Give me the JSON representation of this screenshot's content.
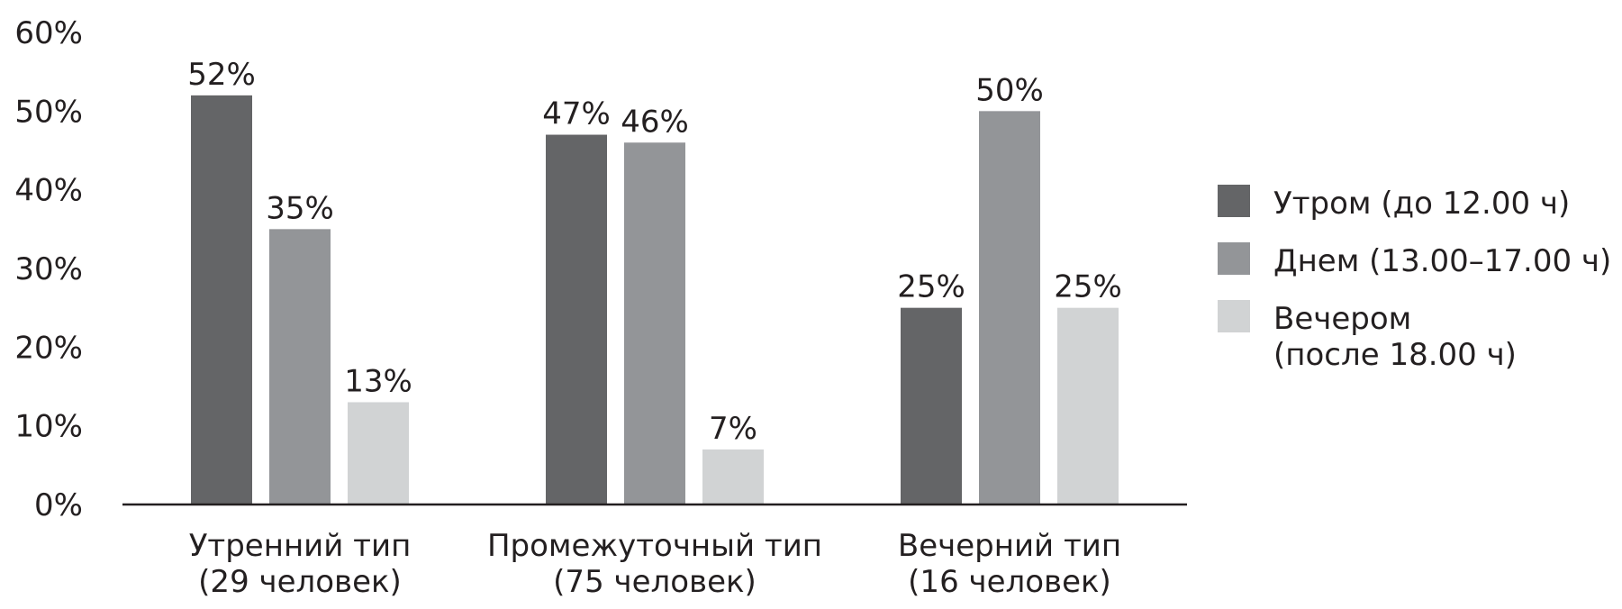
{
  "chart_data": {
    "type": "bar",
    "title": "",
    "xlabel": "",
    "ylabel": "",
    "ylim": [
      0,
      60
    ],
    "yticks": [
      "0%",
      "10%",
      "20%",
      "30%",
      "40%",
      "50%",
      "60%"
    ],
    "ytick_values": [
      0,
      10,
      20,
      30,
      40,
      50,
      60
    ],
    "grid": false,
    "legend_position": "right",
    "categories": [
      [
        "Утренний тип",
        "(29 человек)"
      ],
      [
        "Промежуточный тип",
        "(75 человек)"
      ],
      [
        "Вечерний тип",
        "(16 человек)"
      ]
    ],
    "series": [
      {
        "name": [
          "Утром (до 12.00 ч)"
        ],
        "color": "#646567",
        "values": [
          52,
          47,
          25
        ],
        "labels": [
          "52%",
          "47%",
          "25%"
        ]
      },
      {
        "name": [
          "Днем (13.00–17.00 ч)"
        ],
        "color": "#939598",
        "values": [
          35,
          46,
          50
        ],
        "labels": [
          "35%",
          "46%",
          "50%"
        ]
      },
      {
        "name": [
          "Вечером",
          "(после 18.00 ч)"
        ],
        "color": "#d1d3d4",
        "values": [
          13,
          7,
          25
        ],
        "labels": [
          "13%",
          "7%",
          "25%"
        ]
      }
    ]
  }
}
